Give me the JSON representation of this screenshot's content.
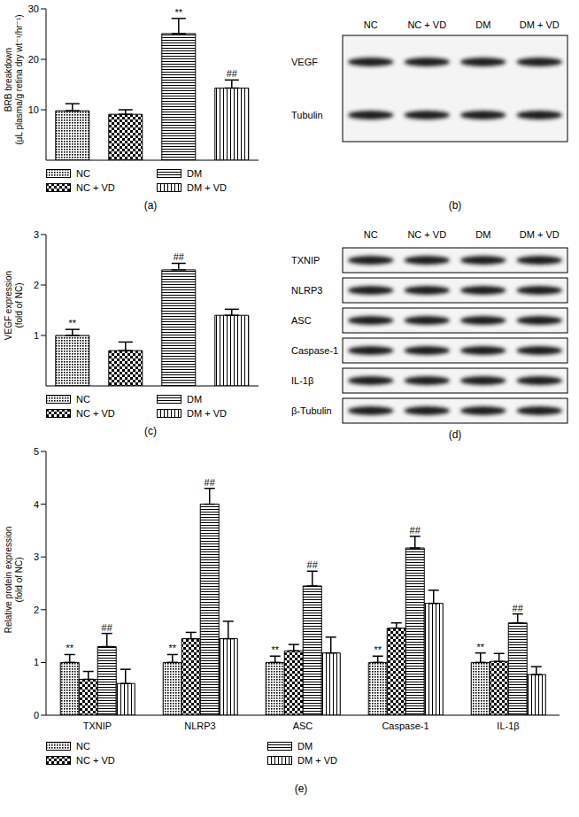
{
  "chart_data": [
    {
      "type": "bar",
      "caption": "(a)",
      "y_label": [
        "BRB breakdown",
        "(μL plasma/g retina dry wt⁻¹/hr⁻¹)"
      ],
      "categories": [
        "NC",
        "NC + VD",
        "DM",
        "DM + VD"
      ],
      "values": [
        9.8,
        9.1,
        25.1,
        14.3
      ],
      "errors": [
        1.4,
        0.9,
        3.0,
        1.6
      ],
      "annotations": [
        null,
        null,
        "**",
        "##"
      ],
      "colors": [
        "#000000",
        "#000000",
        "#000000",
        "#000000"
      ],
      "ylim": [
        0,
        30
      ],
      "yticks": [
        0,
        10,
        20,
        30
      ],
      "legend": "bottom",
      "tick_labels": "y"
    },
    {
      "type": "bar",
      "caption": "(c)",
      "y_label": [
        "VEGF expression",
        "(fold of NC)"
      ],
      "categories": [
        "NC",
        "NC + VD",
        "DM",
        "DM + VD"
      ],
      "values": [
        1.0,
        0.7,
        2.3,
        1.4
      ],
      "errors": [
        0.12,
        0.17,
        0.13,
        0.12
      ],
      "annotations": [
        "**",
        null,
        "##",
        null
      ],
      "colors": [
        "#000000",
        "#000000",
        "#000000",
        "#000000"
      ],
      "ylim": [
        0,
        3
      ],
      "yticks": [
        0,
        1,
        2,
        3
      ],
      "legend": "bottom",
      "tick_labels": "y"
    },
    {
      "type": "bar",
      "caption": "(e)",
      "y_label": [
        "Relative protein expression",
        "(fold of NC)"
      ],
      "categories": [
        "TXNIP",
        "NLRP3",
        "ASC",
        "Caspase-1",
        "IL-1β"
      ],
      "series": [
        {
          "name": "NC",
          "color": "#000000",
          "values": [
            1.0,
            1.0,
            1.0,
            1.0,
            1.0
          ],
          "errors": [
            0.15,
            0.15,
            0.12,
            0.12,
            0.18
          ],
          "annotations": [
            "**",
            "**",
            "**",
            "**",
            "**"
          ]
        },
        {
          "name": "NC + VD",
          "color": "#000000",
          "values": [
            0.68,
            1.45,
            1.22,
            1.65,
            1.02
          ],
          "errors": [
            0.15,
            0.12,
            0.12,
            0.1,
            0.15
          ],
          "annotations": [
            null,
            null,
            null,
            null,
            null
          ]
        },
        {
          "name": "DM",
          "color": "#000000",
          "values": [
            1.3,
            4.0,
            2.45,
            3.17,
            1.75
          ],
          "errors": [
            0.25,
            0.3,
            0.28,
            0.22,
            0.17
          ],
          "annotations": [
            "##",
            "##",
            "##",
            "##",
            "##"
          ]
        },
        {
          "name": "DM + VD",
          "color": "#000000",
          "values": [
            0.6,
            1.45,
            1.18,
            2.12,
            0.77
          ],
          "errors": [
            0.27,
            0.33,
            0.3,
            0.25,
            0.15
          ],
          "annotations": [
            null,
            null,
            null,
            null,
            null
          ]
        }
      ],
      "ylim": [
        0,
        5
      ],
      "yticks": [
        0,
        1,
        2,
        3,
        4,
        5
      ],
      "legend": "bottom"
    }
  ],
  "blots": [
    {
      "caption": "(b)",
      "lanes": [
        "NC",
        "NC + VD",
        "DM",
        "DM + VD"
      ],
      "rows": [
        "VEGF",
        "Tubulin"
      ]
    },
    {
      "caption": "(d)",
      "lanes": [
        "NC",
        "NC + VD",
        "DM",
        "DM + VD"
      ],
      "rows": [
        "TXNIP",
        "NLRP3",
        "ASC",
        "Caspase-1",
        "IL-1β",
        "β-Tubulin"
      ]
    }
  ]
}
